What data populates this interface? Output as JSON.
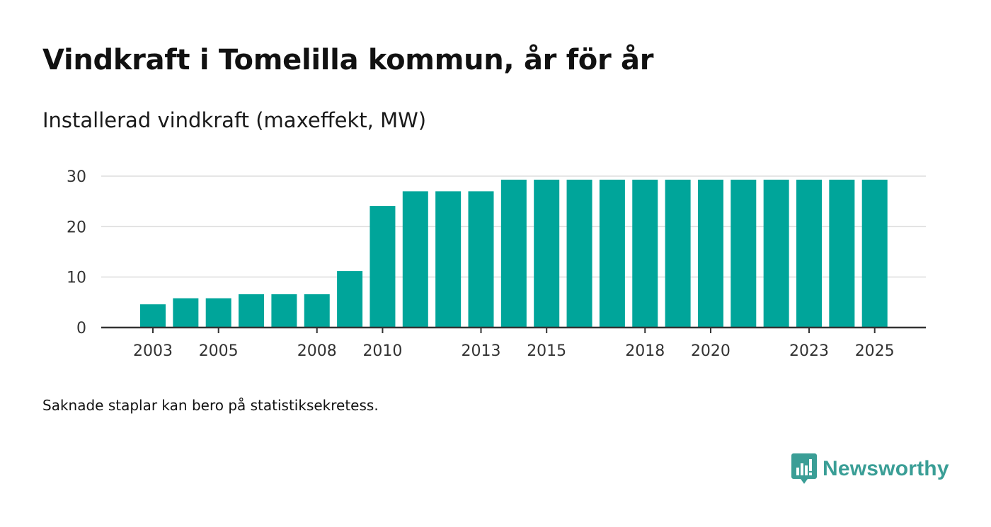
{
  "title": "Vindkraft i Tomelilla kommun, år för år",
  "subtitle": "Installerad vindkraft (maxeffekt, MW)",
  "footnote": "Saknade staplar kan bero på statistiksekretess.",
  "brand": {
    "name": "Newsworthy",
    "icon": "newsworthy-logo-icon",
    "color": "#3a9e96"
  },
  "colors": {
    "bar": "#00a59a",
    "grid": "#dddddd",
    "axis": "#333333"
  },
  "chart_data": {
    "type": "bar",
    "title": "Vindkraft i Tomelilla kommun, år för år",
    "ylabel": "Installerad vindkraft (maxeffekt, MW)",
    "xlabel": "",
    "ylim": [
      0,
      30
    ],
    "yticks": [
      0,
      10,
      20,
      30
    ],
    "grid": true,
    "categories": [
      "2003",
      "2004",
      "2005",
      "2006",
      "2007",
      "2008",
      "2009",
      "2010",
      "2011",
      "2012",
      "2013",
      "2014",
      "2015",
      "2016",
      "2017",
      "2018",
      "2019",
      "2020",
      "2021",
      "2022",
      "2023",
      "2024",
      "2025"
    ],
    "values": [
      4.6,
      5.8,
      5.8,
      6.6,
      6.6,
      6.6,
      11.2,
      24.1,
      27.0,
      27.0,
      27.0,
      29.3,
      29.3,
      29.3,
      29.3,
      29.3,
      29.3,
      29.3,
      29.3,
      29.3,
      29.3,
      29.3,
      29.3
    ],
    "xtick_labels": [
      "2003",
      "2005",
      "2008",
      "2010",
      "2013",
      "2015",
      "2018",
      "2020",
      "2023",
      "2025"
    ]
  }
}
